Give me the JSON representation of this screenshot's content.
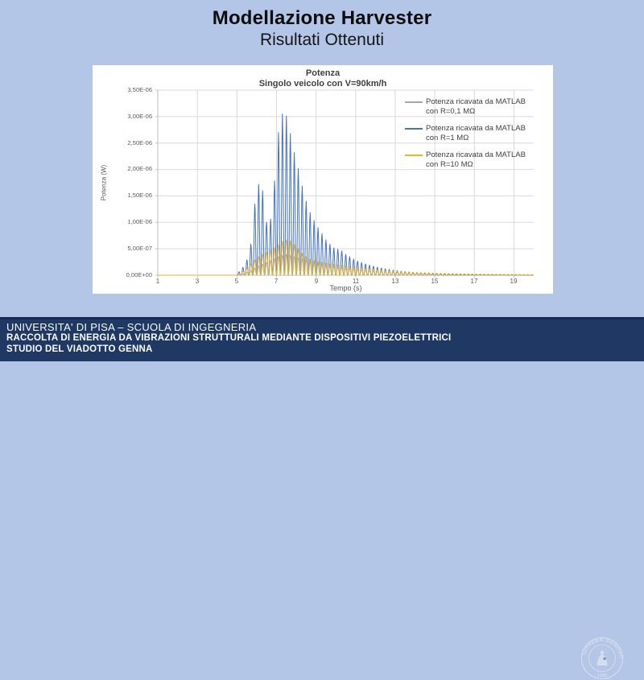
{
  "slide": {
    "title": "Modellazione Harvester",
    "subtitle": "Risultati Ottenuti",
    "background_color": "#b4c6e7"
  },
  "chart_data": {
    "type": "line",
    "title": "Potenza",
    "subtitle": "Singolo veicolo con V=90km/h",
    "xlabel": "Tempo (s)",
    "ylabel": "Potenza (W)",
    "xlim": [
      1,
      20
    ],
    "ylim": [
      0,
      3.5e-06
    ],
    "x_ticks": [
      1,
      3,
      5,
      7,
      9,
      11,
      13,
      15,
      17,
      19
    ],
    "y_ticks": [
      {
        "v": 3.5e-06,
        "label": "3,50E-06"
      },
      {
        "v": 3e-06,
        "label": "3,00E-06"
      },
      {
        "v": 2.5e-06,
        "label": "2,50E-06"
      },
      {
        "v": 2e-06,
        "label": "2,00E-06"
      },
      {
        "v": 1.5e-06,
        "label": "1,50E-06"
      },
      {
        "v": 1e-06,
        "label": "1,00E-06"
      },
      {
        "v": 5e-07,
        "label": "5,00E-07"
      },
      {
        "v": 0,
        "label": "0,00E+00"
      }
    ],
    "grid": true,
    "legend_position": "right-inside",
    "sample_dt_s": 0.02,
    "spike_rate_hz": 5,
    "spike_start_s": 5.0,
    "series": [
      {
        "name": "Potenza ricavata da MATLAB con R=0,1 MΩ",
        "color": "#a6a6a6",
        "sharpness": 2.2,
        "envelope_peaks_w": [
          [
            5.2,
            1e-08
          ],
          [
            5.6,
            7e-08
          ],
          [
            6.0,
            1.6e-07
          ],
          [
            6.4,
            2.3e-07
          ],
          [
            6.8,
            3e-07
          ],
          [
            7.2,
            3.7e-07
          ],
          [
            7.5,
            4e-07
          ],
          [
            7.8,
            3.7e-07
          ],
          [
            8.2,
            3.2e-07
          ],
          [
            8.6,
            2.7e-07
          ],
          [
            9.0,
            2.3e-07
          ],
          [
            9.5,
            1.9e-07
          ],
          [
            10.0,
            1.6e-07
          ],
          [
            10.5,
            1.3e-07
          ],
          [
            11.0,
            1.1e-07
          ],
          [
            12.0,
            8e-08
          ],
          [
            13.0,
            5.5e-08
          ],
          [
            14.0,
            4e-08
          ],
          [
            15.0,
            2.8e-08
          ],
          [
            16.0,
            2e-08
          ],
          [
            17.0,
            1.5e-08
          ],
          [
            18.0,
            1.2e-08
          ],
          [
            19.0,
            1e-08
          ],
          [
            20.0,
            8e-09
          ]
        ]
      },
      {
        "name": "Potenza ricavata da MATLAB con R=1 MΩ",
        "color": "#4472c4",
        "sharpness": 3,
        "envelope_peaks_w": [
          [
            5.0,
            3e-08
          ],
          [
            5.2,
            1e-07
          ],
          [
            5.4,
            2e-07
          ],
          [
            5.6,
            3.8e-07
          ],
          [
            5.8,
            8e-07
          ],
          [
            5.95,
            1.62e-06
          ],
          [
            6.15,
            1.75e-06
          ],
          [
            6.35,
            1.55e-06
          ],
          [
            6.5,
            1e-06
          ],
          [
            6.65,
            9.2e-07
          ],
          [
            6.8,
            1.35e-06
          ],
          [
            6.95,
            2e-06
          ],
          [
            7.1,
            2.7e-06
          ],
          [
            7.3,
            3.05e-06
          ],
          [
            7.45,
            3.08e-06
          ],
          [
            7.6,
            2.88e-06
          ],
          [
            7.75,
            2.58e-06
          ],
          [
            7.9,
            2.32e-06
          ],
          [
            8.05,
            2.1e-06
          ],
          [
            8.2,
            1.85e-06
          ],
          [
            8.35,
            1.6e-06
          ],
          [
            8.5,
            1.4e-06
          ],
          [
            8.65,
            1.22e-06
          ],
          [
            8.8,
            1.12e-06
          ],
          [
            9.0,
            9.5e-07
          ],
          [
            9.2,
            8.5e-07
          ],
          [
            9.4,
            7.2e-07
          ],
          [
            9.6,
            6.2e-07
          ],
          [
            9.8,
            5.5e-07
          ],
          [
            10.0,
            4.8e-07
          ],
          [
            10.2,
            5e-07
          ],
          [
            10.4,
            4.2e-07
          ],
          [
            10.6,
            3.7e-07
          ],
          [
            10.8,
            3.3e-07
          ],
          [
            11.0,
            2.8e-07
          ],
          [
            11.3,
            2.4e-07
          ],
          [
            11.6,
            2e-07
          ],
          [
            12.0,
            1.6e-07
          ],
          [
            12.5,
            1.2e-07
          ],
          [
            13.0,
            9e-08
          ],
          [
            13.5,
            7e-08
          ],
          [
            14.0,
            5e-08
          ],
          [
            14.5,
            4e-08
          ],
          [
            15.0,
            3e-08
          ],
          [
            16.0,
            2e-08
          ],
          [
            17.0,
            1.4e-08
          ],
          [
            18.0,
            1e-08
          ],
          [
            19.0,
            8e-09
          ],
          [
            20.0,
            7e-09
          ]
        ]
      },
      {
        "name": "Potenza ricavata da MATLAB con R=10 MΩ",
        "color": "#eeb421",
        "sharpness": 1.8,
        "envelope_peaks_w": [
          [
            5.1,
            2e-08
          ],
          [
            5.4,
            1e-07
          ],
          [
            5.7,
            2.2e-07
          ],
          [
            6.0,
            3.3e-07
          ],
          [
            6.3,
            4e-07
          ],
          [
            6.6,
            4.5e-07
          ],
          [
            6.9,
            5.2e-07
          ],
          [
            7.2,
            6.2e-07
          ],
          [
            7.45,
            6.8e-07
          ],
          [
            7.7,
            6.5e-07
          ],
          [
            8.0,
            5.5e-07
          ],
          [
            8.3,
            4.2e-07
          ],
          [
            8.6,
            3.2e-07
          ],
          [
            9.0,
            2.7e-07
          ],
          [
            9.4,
            2.4e-07
          ],
          [
            9.8,
            2.1e-07
          ],
          [
            10.2,
            1.9e-07
          ],
          [
            10.6,
            1.7e-07
          ],
          [
            11.0,
            1.5e-07
          ],
          [
            11.5,
            1.3e-07
          ],
          [
            12.0,
            1.1e-07
          ],
          [
            12.5,
            9e-08
          ],
          [
            13.0,
            7.5e-08
          ],
          [
            13.5,
            6.5e-08
          ],
          [
            14.0,
            5.5e-08
          ],
          [
            15.0,
            4e-08
          ],
          [
            16.0,
            3e-08
          ],
          [
            17.0,
            2.3e-08
          ],
          [
            18.0,
            1.8e-08
          ],
          [
            19.0,
            1.4e-08
          ],
          [
            20.0,
            1.2e-08
          ]
        ]
      }
    ],
    "legend": [
      {
        "line1": "Potenza ricavata da MATLAB",
        "line2": "con R=0,1 MΩ"
      },
      {
        "line1": "Potenza ricavata da MATLAB",
        "line2": "con R=1 MΩ"
      },
      {
        "line1": "Potenza ricavata da MATLAB",
        "line2": "con R=10 MΩ"
      }
    ],
    "colors": {
      "gridline": "#d9d9d9",
      "axis": "#bfbfbf",
      "tick_label": "#595959",
      "title": "#404040"
    }
  },
  "footer": {
    "line1": "UNIVERSITA' DI PISA – SCUOLA DI INGEGNERIA",
    "line2": "RACCOLTA DI ENERGIA DA VIBRAZIONI STRUTTURALI MEDIANTE DISPOSITIVI PIEZOELETTRICI",
    "line3": "STUDIO DEL VIADOTTO GENNA",
    "background_color": "#1f3864",
    "logo": {
      "motto_text": "IN SUPREMÆ DIGNITATIS",
      "year_text": "· 1343 ·"
    }
  }
}
